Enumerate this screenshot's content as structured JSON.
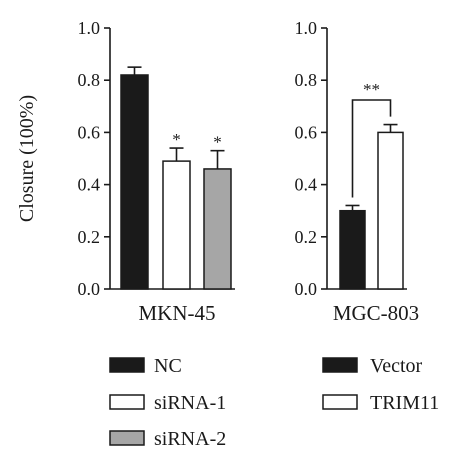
{
  "chart_data": [
    {
      "type": "bar",
      "ylabel": "Closure (100%)",
      "xlabel": "MKN-45",
      "ylim": [
        0,
        1.0
      ],
      "yticks": [
        "0.0",
        "0.2",
        "0.4",
        "0.6",
        "0.8",
        "1.0"
      ],
      "grid": false,
      "categories": [
        "NC",
        "siRNA-1",
        "siRNA-2"
      ],
      "values": [
        0.82,
        0.49,
        0.46
      ],
      "errors": [
        0.03,
        0.05,
        0.07
      ],
      "significance": [
        "",
        "*",
        "*"
      ],
      "colors": [
        "#1a1a1a",
        "#ffffff",
        "#a6a6a6"
      ]
    },
    {
      "type": "bar",
      "ylabel": "",
      "xlabel": "MGC-803",
      "ylim": [
        0,
        1.0
      ],
      "yticks": [
        "0.0",
        "0.2",
        "0.4",
        "0.6",
        "0.8",
        "1.0"
      ],
      "grid": false,
      "categories": [
        "Vector",
        "TRIM11"
      ],
      "values": [
        0.3,
        0.6
      ],
      "errors": [
        0.02,
        0.03
      ],
      "bracket": {
        "from": 0,
        "to": 1,
        "label": "**"
      },
      "colors": [
        "#1a1a1a",
        "#ffffff"
      ]
    }
  ],
  "legend": {
    "left": [
      {
        "label": "NC",
        "color": "#1a1a1a"
      },
      {
        "label": "siRNA-1",
        "color": "#ffffff"
      },
      {
        "label": "siRNA-2",
        "color": "#a6a6a6"
      }
    ],
    "right": [
      {
        "label": "Vector",
        "color": "#1a1a1a"
      },
      {
        "label": "TRIM11",
        "color": "#ffffff"
      }
    ]
  }
}
